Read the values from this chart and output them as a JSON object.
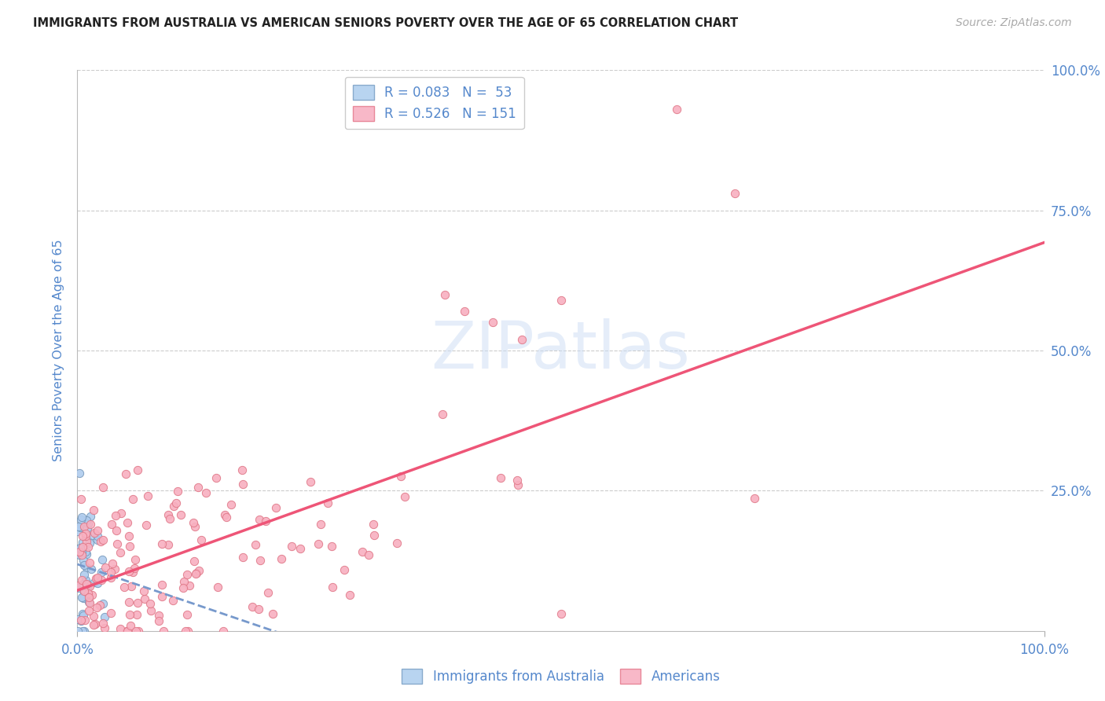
{
  "title": "IMMIGRANTS FROM AUSTRALIA VS AMERICAN SENIORS POVERTY OVER THE AGE OF 65 CORRELATION CHART",
  "source": "Source: ZipAtlas.com",
  "ylabel": "Seniors Poverty Over the Age of 65",
  "ytick_labels": [
    "",
    "25.0%",
    "50.0%",
    "75.0%",
    "100.0%"
  ],
  "xtick_labels": [
    "0.0%",
    "100.0%"
  ],
  "legend_entries": [
    {
      "label": "R = 0.083   N =  53",
      "facecolor": "#b8d4f0",
      "edgecolor": "#88aacc"
    },
    {
      "label": "R = 0.526   N = 151",
      "facecolor": "#f8b8c8",
      "edgecolor": "#e88899"
    }
  ],
  "legend_bottom": [
    "Immigrants from Australia",
    "Americans"
  ],
  "watermark": "ZIPatlas",
  "title_color": "#222222",
  "source_color": "#aaaaaa",
  "axis_color": "#5588cc",
  "grid_color": "#cccccc",
  "bg_color": "#ffffff",
  "aus_dot_color": "#b0ccee",
  "aus_dot_edge": "#7799bb",
  "amer_dot_color": "#f8b0c0",
  "amer_dot_edge": "#e07888",
  "aus_line_color": "#7799cc",
  "amer_line_color": "#ee5577",
  "seed": 99
}
